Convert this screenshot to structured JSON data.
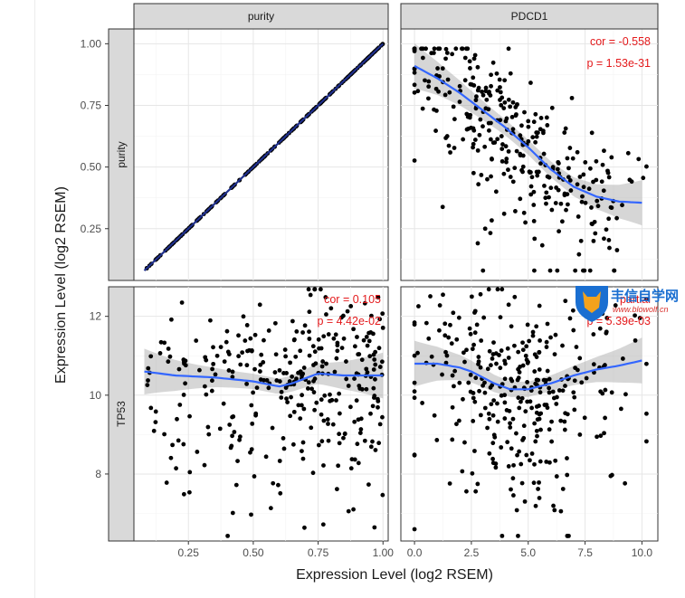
{
  "chart_data": {
    "type": "scatter",
    "xlabel": "Expression Level (log2 RSEM)",
    "ylabel": "Expression Level (log2 RSEM)",
    "columns": [
      "purity",
      "PDCD1"
    ],
    "rows": [
      "purity",
      "TP53"
    ],
    "grid": true,
    "axes": {
      "x_purity": {
        "range": [
          0.04,
          1.02
        ],
        "ticks": [
          0.25,
          0.5,
          0.75,
          1.0
        ],
        "tick_labels": [
          "0.25",
          "0.50",
          "0.75",
          "1.00"
        ]
      },
      "x_pdcd1": {
        "range": [
          -0.6,
          10.7
        ],
        "ticks": [
          0,
          2.5,
          5,
          7.5,
          10
        ],
        "tick_labels": [
          "0.0",
          "2.5",
          "5.0",
          "7.5",
          "10.0"
        ]
      },
      "y_purity": {
        "range": [
          0.04,
          1.06
        ],
        "ticks": [
          0.25,
          0.5,
          0.75,
          1.0
        ],
        "tick_labels": [
          "0.25",
          "0.50",
          "0.75",
          "1.00"
        ]
      },
      "y_tp53": {
        "range": [
          6.3,
          12.75
        ],
        "ticks": [
          8,
          10,
          12
        ],
        "tick_labels": [
          "8",
          "10",
          "12"
        ]
      }
    },
    "panels": [
      {
        "row": "purity",
        "col": "purity",
        "fit": {
          "x": [
            0.08,
            1.0
          ],
          "y": [
            0.08,
            1.0
          ]
        },
        "annotation": []
      },
      {
        "row": "purity",
        "col": "PDCD1",
        "fit": {
          "x": [
            0,
            1,
            2,
            3,
            4,
            5,
            6,
            7,
            8,
            9,
            10
          ],
          "y": [
            0.91,
            0.86,
            0.8,
            0.73,
            0.66,
            0.58,
            0.49,
            0.42,
            0.38,
            0.36,
            0.355
          ]
        },
        "annotation": [
          "cor = -0.558",
          "p = 1.53e-31"
        ]
      },
      {
        "row": "TP53",
        "col": "purity",
        "fit": {
          "x": [
            0.08,
            0.2,
            0.35,
            0.5,
            0.6,
            0.65,
            0.75,
            0.85,
            1.0
          ],
          "y": [
            10.6,
            10.5,
            10.45,
            10.35,
            10.22,
            10.3,
            10.55,
            10.5,
            10.5
          ]
        },
        "annotation": [
          "cor = 0.105",
          "p = 4.42e-02"
        ]
      },
      {
        "row": "TP53",
        "col": "PDCD1",
        "fit": {
          "x": [
            0,
            1,
            2,
            2.5,
            3.5,
            4.2,
            5,
            6,
            7,
            8,
            9,
            10
          ],
          "y": [
            10.8,
            10.8,
            10.7,
            10.6,
            10.3,
            10.15,
            10.15,
            10.3,
            10.5,
            10.65,
            10.75,
            10.88
          ]
        },
        "annotation": [
          "partial",
          "p = 5.39e-03"
        ]
      }
    ]
  },
  "watermark": {
    "text": "丰信自学网",
    "sub": "www.blowolf.cn"
  }
}
